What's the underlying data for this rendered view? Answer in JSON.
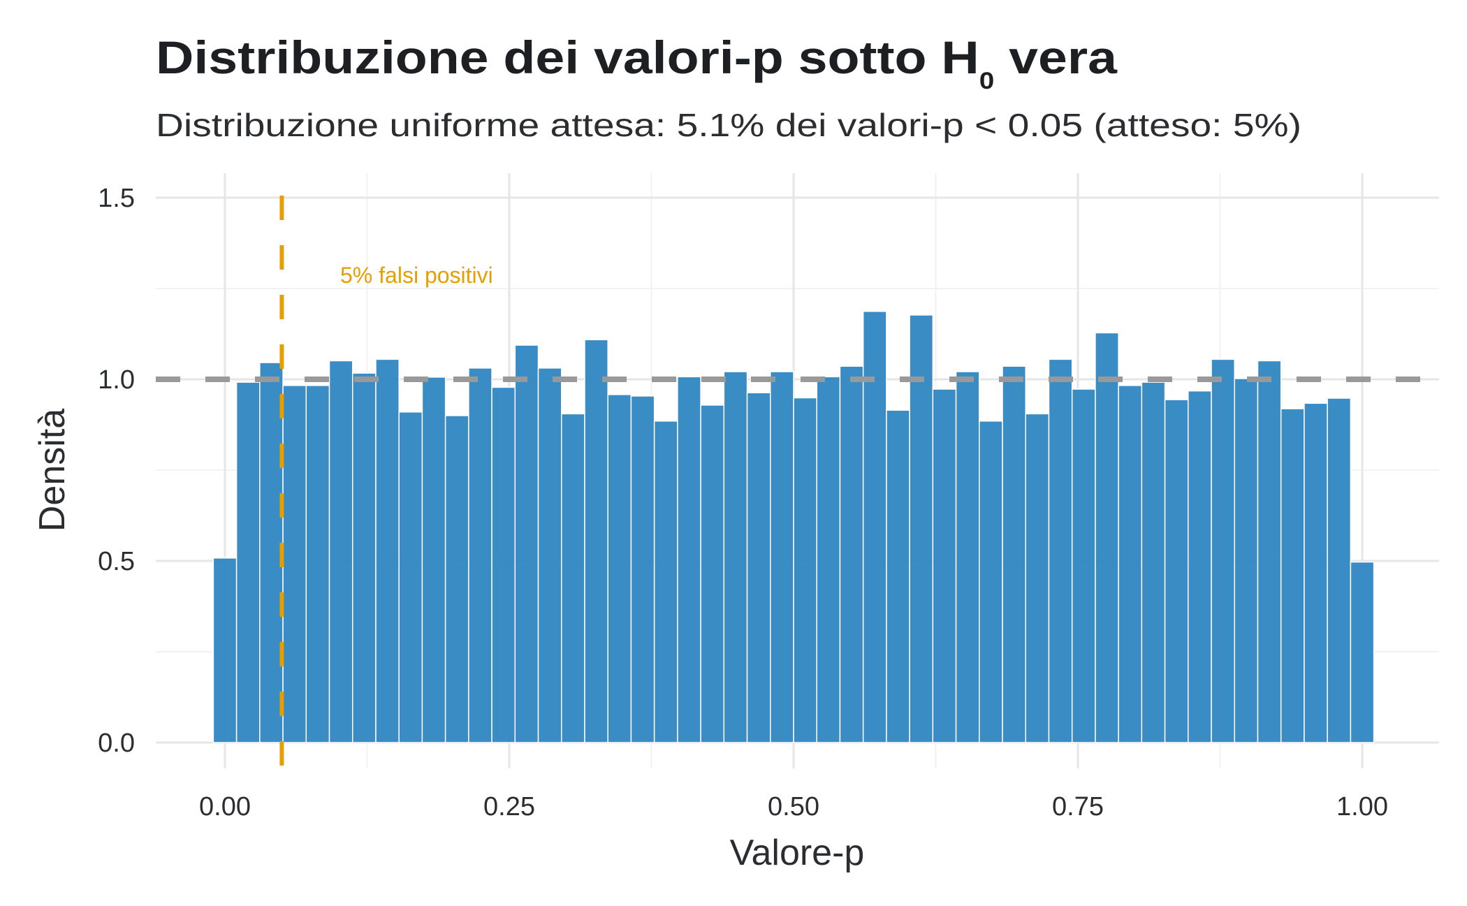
{
  "chart_data": {
    "type": "bar",
    "title": "Distribuzione dei valori-p sotto H",
    "title_subscript": "0",
    "title_suffix": " vera",
    "subtitle": "Distribuzione uniforme attesa: 5.1% dei valori-p < 0.05 (atteso: 5%)",
    "xlabel": "Valore-p",
    "ylabel": "Densità",
    "xlim": [
      -0.06,
      1.06
    ],
    "ylim": [
      -0.07,
      1.6
    ],
    "x_ticks": [
      0,
      0.25,
      0.5,
      0.75,
      1.0
    ],
    "x_tick_labels": [
      "0.00",
      "0.25",
      "0.50",
      "0.75",
      "1.00"
    ],
    "y_ticks": [
      0,
      0.5,
      1.0,
      1.5
    ],
    "y_tick_labels": [
      "0.0",
      "0.5",
      "1.0",
      "1.5"
    ],
    "grid": true,
    "bins": 50,
    "bin_centers_from": 0,
    "bin_centers_to": 1,
    "values": [
      0.508,
      0.992,
      1.046,
      0.983,
      0.983,
      1.051,
      1.017,
      1.055,
      0.91,
      1.006,
      0.9,
      1.031,
      0.978,
      1.094,
      1.031,
      0.905,
      1.109,
      0.958,
      0.954,
      0.885,
      1.007,
      0.929,
      1.021,
      0.963,
      1.021,
      0.949,
      1.007,
      1.036,
      1.187,
      0.915,
      1.177,
      0.973,
      1.021,
      0.885,
      1.036,
      0.905,
      1.055,
      0.973,
      1.128,
      0.983,
      0.992,
      0.944,
      0.968,
      1.055,
      1.002,
      1.051,
      0.919,
      0.934,
      0.948,
      0.497
    ],
    "reference_line": {
      "y": 1.0,
      "style": "dashed",
      "color": "#999999"
    },
    "threshold_line": {
      "x": 0.05,
      "style": "dashed",
      "color": "#E69F00"
    },
    "annotation": {
      "text": "5% falsi positivi",
      "x": 0.1,
      "y": 1.28,
      "color": "#E69F00"
    },
    "bar_color": "#2E86C1"
  }
}
